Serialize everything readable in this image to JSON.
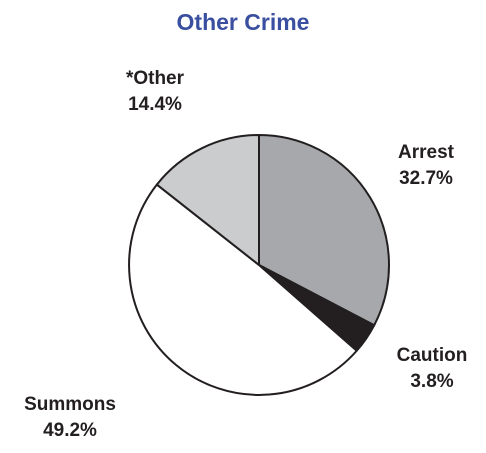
{
  "chart_data": {
    "type": "pie",
    "title": "Other Crime",
    "slices": [
      {
        "label": "Arrest",
        "value_text": "32.7%",
        "value": 32.7,
        "color": "#a6a8ab"
      },
      {
        "label": "Caution",
        "value_text": "3.8%",
        "value": 3.8,
        "color": "#231f20"
      },
      {
        "label": "Summons",
        "value_text": "49.2%",
        "value": 49.2,
        "color": "#ffffff"
      },
      {
        "label": "*Other",
        "value_text": "14.4%",
        "value": 14.4,
        "color": "#cbcccd"
      }
    ],
    "start_angle": "12 o'clock",
    "direction": "clockwise",
    "title_color": "#3a4fa0",
    "outline_color": "#231f20"
  }
}
